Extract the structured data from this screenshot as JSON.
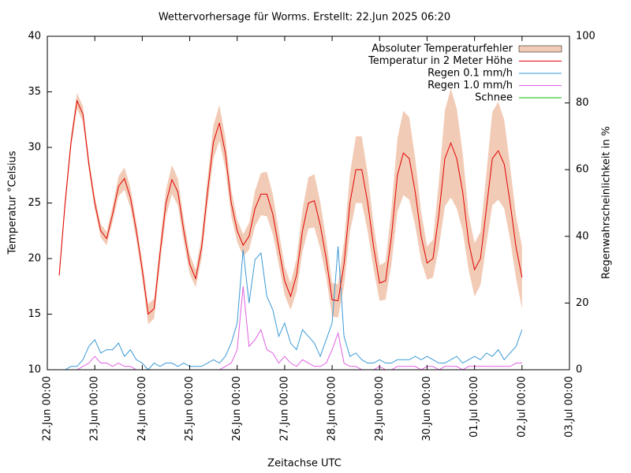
{
  "chart_data": {
    "type": "line",
    "title": "Wettervorhersage für Worms. Erstellt: 22.Jun 2025 06:20",
    "x_label": "Zeitachse UTC",
    "y_label": "Temperatur °Celsius",
    "y2_label": "Regenwahrscheinlichkeit in %",
    "legend": "top right",
    "xlim": [
      "2025-06-22 00:00",
      "2025-07-03 00:00"
    ],
    "xticks": [
      {
        "value": "2025-06-22 00:00",
        "label": "22.Jun 00:00"
      },
      {
        "value": "2025-06-23 00:00",
        "label": "23.Jun 00:00"
      },
      {
        "value": "2025-06-24 00:00",
        "label": "24.Jun 00:00"
      },
      {
        "value": "2025-06-25 00:00",
        "label": "25.Jun 00:00"
      },
      {
        "value": "2025-06-26 00:00",
        "label": "26.Jun 00:00"
      },
      {
        "value": "2025-06-27 00:00",
        "label": "27.Jun 00:00"
      },
      {
        "value": "2025-06-28 00:00",
        "label": "28.Jun 00:00"
      },
      {
        "value": "2025-06-29 00:00",
        "label": "29.Jun 00:00"
      },
      {
        "value": "2025-06-30 00:00",
        "label": "30.Jun 00:00"
      },
      {
        "value": "2025-07-01 00:00",
        "label": "01.Jul 00:00"
      },
      {
        "value": "2025-07-02 00:00",
        "label": "02.Jul 00:00"
      },
      {
        "value": "2025-07-03 00:00",
        "label": "03.Jul 00:00"
      }
    ],
    "ylim": [
      10,
      40
    ],
    "yticks": [
      10,
      15,
      20,
      25,
      30,
      35,
      40
    ],
    "y2lim": [
      0,
      100
    ],
    "y2ticks": [
      0,
      20,
      40,
      60,
      80,
      100
    ],
    "x": [
      "2025-06-22 06:00",
      "2025-06-22 09:00",
      "2025-06-22 12:00",
      "2025-06-22 15:00",
      "2025-06-22 18:00",
      "2025-06-22 21:00",
      "2025-06-23 00:00",
      "2025-06-23 03:00",
      "2025-06-23 06:00",
      "2025-06-23 09:00",
      "2025-06-23 12:00",
      "2025-06-23 15:00",
      "2025-06-23 18:00",
      "2025-06-23 21:00",
      "2025-06-24 00:00",
      "2025-06-24 03:00",
      "2025-06-24 06:00",
      "2025-06-24 09:00",
      "2025-06-24 12:00",
      "2025-06-24 15:00",
      "2025-06-24 18:00",
      "2025-06-24 21:00",
      "2025-06-25 00:00",
      "2025-06-25 03:00",
      "2025-06-25 06:00",
      "2025-06-25 09:00",
      "2025-06-25 12:00",
      "2025-06-25 15:00",
      "2025-06-25 18:00",
      "2025-06-25 21:00",
      "2025-06-26 00:00",
      "2025-06-26 03:00",
      "2025-06-26 06:00",
      "2025-06-26 09:00",
      "2025-06-26 12:00",
      "2025-06-26 15:00",
      "2025-06-26 18:00",
      "2025-06-26 21:00",
      "2025-06-27 00:00",
      "2025-06-27 03:00",
      "2025-06-27 06:00",
      "2025-06-27 09:00",
      "2025-06-27 12:00",
      "2025-06-27 15:00",
      "2025-06-27 18:00",
      "2025-06-27 21:00",
      "2025-06-28 00:00",
      "2025-06-28 03:00",
      "2025-06-28 06:00",
      "2025-06-28 09:00",
      "2025-06-28 12:00",
      "2025-06-28 15:00",
      "2025-06-28 18:00",
      "2025-06-28 21:00",
      "2025-06-29 00:00",
      "2025-06-29 03:00",
      "2025-06-29 06:00",
      "2025-06-29 09:00",
      "2025-06-29 12:00",
      "2025-06-29 15:00",
      "2025-06-29 18:00",
      "2025-06-29 21:00",
      "2025-06-30 00:00",
      "2025-06-30 03:00",
      "2025-06-30 06:00",
      "2025-06-30 09:00",
      "2025-06-30 12:00",
      "2025-06-30 15:00",
      "2025-06-30 18:00",
      "2025-06-30 21:00",
      "2025-07-01 00:00",
      "2025-07-01 03:00",
      "2025-07-01 06:00",
      "2025-07-01 09:00",
      "2025-07-01 12:00",
      "2025-07-01 15:00",
      "2025-07-01 18:00",
      "2025-07-01 21:00",
      "2025-07-02 00:00"
    ],
    "error_band": {
      "name": "Absoluter Temperaturfehler",
      "color": "#f2cbb6",
      "values": [
        0.5,
        0.6,
        0.6,
        0.7,
        0.7,
        0.6,
        0.6,
        0.6,
        0.6,
        0.7,
        0.9,
        1.0,
        0.9,
        0.8,
        0.8,
        0.9,
        0.9,
        1.0,
        1.2,
        1.3,
        1.2,
        1.0,
        0.9,
        0.8,
        1.0,
        1.2,
        1.5,
        1.6,
        1.4,
        1.2,
        1.0,
        1.0,
        1.2,
        1.6,
        1.9,
        2.0,
        1.8,
        1.5,
        1.3,
        1.2,
        1.5,
        1.9,
        2.3,
        2.4,
        2.1,
        1.7,
        1.5,
        1.5,
        2.0,
        2.6,
        3.0,
        3.0,
        2.6,
        2.0,
        1.6,
        1.7,
        2.5,
        3.3,
        3.8,
        3.7,
        3.0,
        2.2,
        1.5,
        1.7,
        3.0,
        4.3,
        4.9,
        4.5,
        3.5,
        2.5,
        2.4,
        2.4,
        3.2,
        4.2,
        4.4,
        4.0,
        3.3,
        2.8,
        2.8
      ]
    },
    "series": [
      {
        "name": "Temperatur in 2 Meter Höhe",
        "color": "#e00000",
        "axis": "y",
        "values": [
          18.5,
          25,
          30.5,
          34.2,
          33,
          28.5,
          25,
          22.5,
          21.8,
          24,
          26.5,
          27.2,
          25.5,
          22.5,
          19,
          15,
          15.5,
          20.5,
          25,
          27.1,
          26,
          22.5,
          19.5,
          18.2,
          21,
          26,
          30.5,
          32.2,
          29.5,
          25,
          22.5,
          21.2,
          22,
          24.5,
          25.8,
          25.8,
          24,
          21,
          18,
          16.6,
          18.5,
          22.5,
          25,
          25.2,
          23,
          20,
          16.3,
          16.2,
          19.5,
          25,
          28,
          28,
          25,
          21,
          17.8,
          18,
          22,
          27.5,
          29.5,
          29,
          26,
          22,
          19.6,
          20,
          24,
          29,
          30.4,
          29,
          26,
          21.5,
          19,
          20,
          24.5,
          29,
          29.7,
          28.5,
          25,
          21,
          18.3
        ]
      },
      {
        "name": "Regen 0.1 mm/h",
        "color": "#3a9ad6",
        "axis": "y2",
        "values": [
          0,
          0,
          1,
          1,
          3,
          7,
          9,
          5,
          6,
          6,
          8,
          4,
          6,
          3,
          2,
          0,
          2,
          1,
          2,
          2,
          1,
          2,
          1,
          1,
          1,
          2,
          3,
          2,
          4,
          8,
          14,
          36,
          20,
          33,
          35,
          22,
          18,
          10,
          14,
          8,
          6,
          12,
          10,
          8,
          4,
          9,
          14,
          37,
          10,
          4,
          5,
          3,
          2,
          2,
          3,
          2,
          2,
          3,
          3,
          3,
          4,
          3,
          4,
          3,
          2,
          2,
          3,
          4,
          2,
          3,
          4,
          3,
          5,
          4,
          6,
          3,
          5,
          7,
          12
        ]
      },
      {
        "name": "Regen 1.0 mm/h",
        "color": "#e060e0",
        "axis": "y2",
        "values": [
          0,
          0,
          0,
          0,
          1,
          2,
          4,
          2,
          2,
          1,
          2,
          1,
          1,
          0,
          0,
          0,
          0,
          0,
          0,
          0,
          0,
          0,
          0,
          0,
          0,
          0,
          0,
          0,
          1,
          2,
          6,
          25,
          7,
          9,
          12,
          6,
          5,
          2,
          4,
          2,
          1,
          3,
          2,
          1,
          1,
          2,
          6,
          11,
          2,
          1,
          1,
          0,
          0,
          0,
          1,
          0,
          0,
          1,
          1,
          1,
          1,
          0,
          1,
          1,
          0,
          1,
          1,
          1,
          0,
          1,
          1,
          1,
          1,
          1,
          1,
          1,
          1,
          2,
          2
        ]
      },
      {
        "name": "Schnee",
        "color": "#00c000",
        "axis": "y2",
        "values": [
          0,
          0,
          0,
          0,
          0,
          0,
          0,
          0,
          0,
          0,
          0,
          0,
          0,
          0,
          0,
          0,
          0,
          0,
          0,
          0,
          0,
          0,
          0,
          0,
          0,
          0,
          0,
          0,
          0,
          0,
          0,
          0,
          0,
          0,
          0,
          0,
          0,
          0,
          0,
          0,
          0,
          0,
          0,
          0,
          0,
          0,
          0,
          0,
          0,
          0,
          0,
          0,
          0,
          0,
          0,
          0,
          0,
          0,
          0,
          0,
          0,
          0,
          0,
          0,
          0,
          0,
          0,
          0,
          0,
          0,
          0,
          0,
          0,
          0,
          0,
          0,
          0,
          0,
          0
        ]
      }
    ]
  }
}
